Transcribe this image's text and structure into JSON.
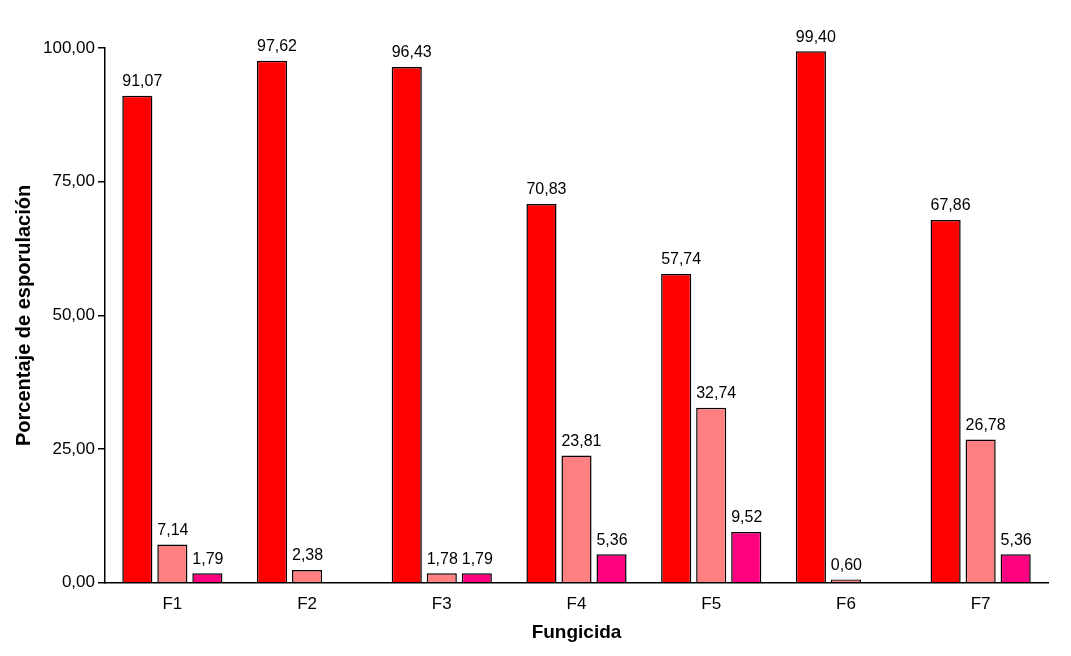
{
  "chart_data": {
    "type": "bar",
    "xlabel": "Fungicida",
    "ylabel": "Porcentaje de esporulación",
    "categories": [
      "F1",
      "F2",
      "F3",
      "F4",
      "F5",
      "F6",
      "F7"
    ],
    "series": [
      {
        "color": "#ff0000",
        "values": [
          91.07,
          97.62,
          96.43,
          70.83,
          57.74,
          99.4,
          67.86
        ],
        "value_labels": [
          "91,07",
          "97,62",
          "96,43",
          "70,83",
          "57,74",
          "99,40",
          "67,86"
        ]
      },
      {
        "color": "#ff8080",
        "values": [
          7.14,
          2.38,
          1.78,
          23.81,
          32.74,
          0.6,
          26.78
        ],
        "value_labels": [
          "7,14",
          "2,38",
          "1,78",
          "23,81",
          "32,74",
          "0,60",
          "26,78"
        ]
      },
      {
        "color": "#ff0080",
        "values": [
          1.79,
          null,
          1.79,
          5.36,
          9.52,
          null,
          5.36
        ],
        "value_labels": [
          "1,79",
          null,
          "1,79",
          "5,36",
          "9,52",
          null,
          "5,36"
        ]
      }
    ],
    "ylim": [
      0,
      100
    ],
    "yticks": [
      {
        "value": 0,
        "label": "0,00"
      },
      {
        "value": 25,
        "label": "25,00"
      },
      {
        "value": 50,
        "label": "50,00"
      },
      {
        "value": 75,
        "label": "75,00"
      },
      {
        "value": 100,
        "label": "100,00"
      }
    ],
    "grid": false,
    "legend": false
  }
}
